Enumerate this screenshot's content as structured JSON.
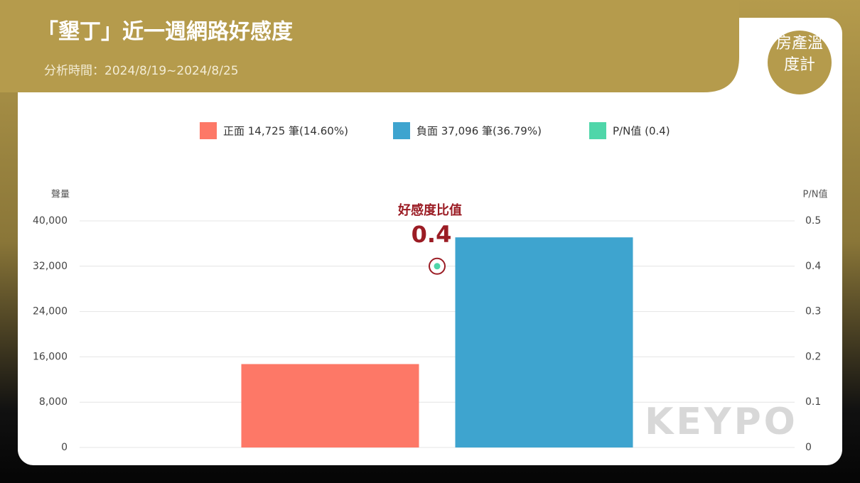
{
  "chart_data": {
    "type": "bar",
    "title": "「墾丁」近一週網路好感度",
    "subtitle": "分析時間：2024/8/19~2024/8/25",
    "brand": "房產溫度計",
    "watermark": "KEYPO",
    "y_label": "聲量",
    "y2_label": "P/N值",
    "annotation": "好感度比值",
    "categories": [
      null
    ],
    "series": [
      {
        "name": "正面 14,725 筆(14.60%)",
        "color": "#fd7867",
        "type": "bar",
        "values": [
          14725
        ]
      },
      {
        "name": "負面 37,096 筆(36.79%)",
        "color": "#3ea4cf",
        "type": "bar",
        "values": [
          37096
        ]
      },
      {
        "name": "P/N值 (0.4)",
        "color": "#4fd6a9",
        "type": "point",
        "axis": "y2",
        "values": [
          0.4
        ]
      }
    ],
    "ylim": [
      0,
      40000
    ],
    "yticks": [
      0,
      {
        "value": 8000,
        "label": "8,000"
      },
      {
        "value": 16000,
        "label": "16,000"
      },
      {
        "value": 24000,
        "label": "24,000"
      },
      {
        "value": 32000,
        "label": "32,000"
      },
      {
        "value": 40000,
        "label": "40,000"
      }
    ],
    "y2lim": [
      0,
      0.5
    ],
    "y2ticks": [
      0,
      0.1,
      0.2,
      0.3,
      0.4,
      0.5
    ],
    "grid": true,
    "legend": "top"
  }
}
